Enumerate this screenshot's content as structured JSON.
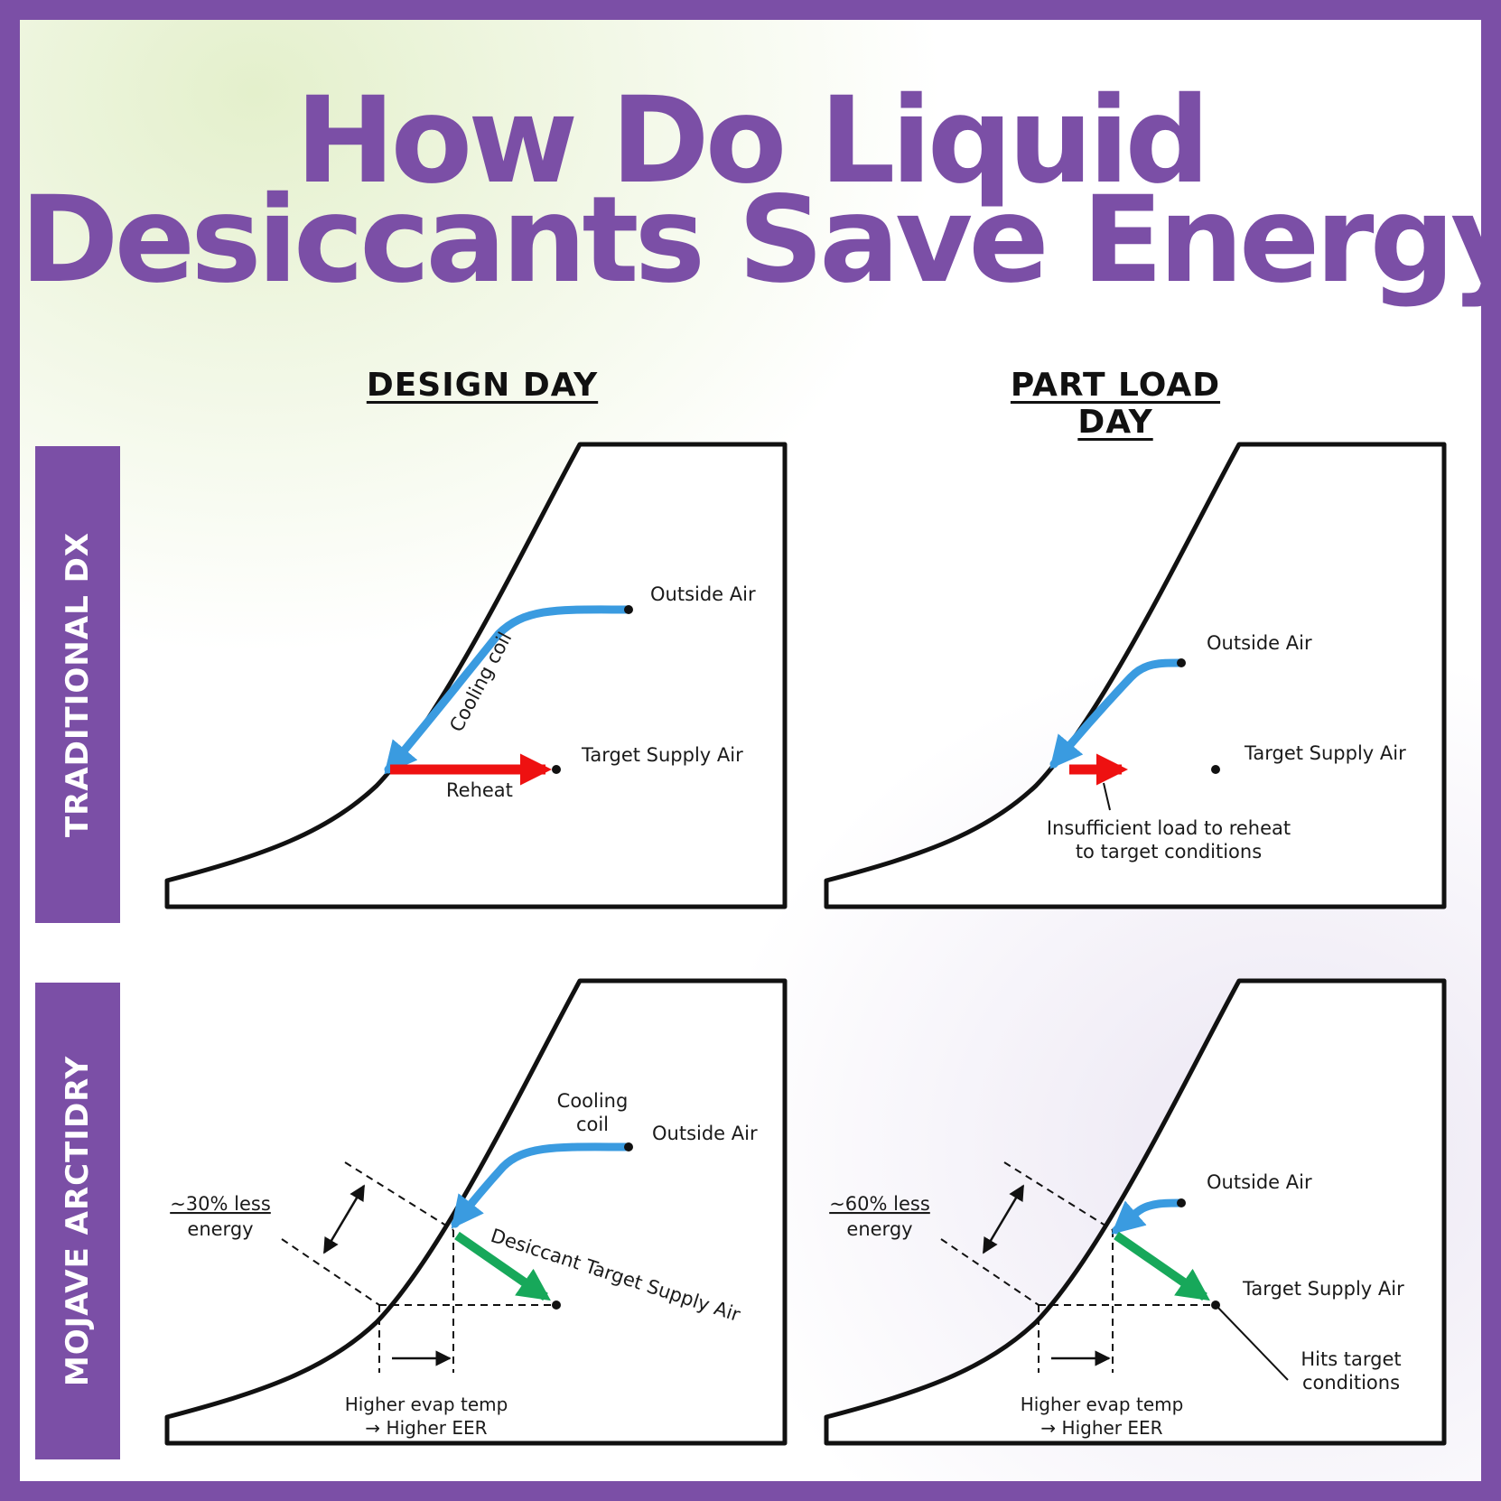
{
  "title": {
    "line1": "How Do Liquid",
    "line2": "Desiccants Save Energy?"
  },
  "columns": {
    "design": "DESIGN DAY",
    "part_load": "PART LOAD DAY"
  },
  "rows": {
    "traditional": "TRADITIONAL DX",
    "mojave": "MOJAVE ARCTIDRY"
  },
  "panels": {
    "trad_design": {
      "outside_air": "Outside Air",
      "cooling_coil": "Cooling coil",
      "target_supply_air": "Target Supply Air",
      "reheat": "Reheat"
    },
    "trad_part": {
      "outside_air": "Outside Air",
      "target_supply_air": "Target Supply Air",
      "note_line1": "Insufficient load to reheat",
      "note_line2": "to target conditions"
    },
    "mojave_design": {
      "cooling_coil_line1": "Cooling",
      "cooling_coil_line2": "coil",
      "outside_air": "Outside Air",
      "desiccant_label": "Desiccant Target Supply Air",
      "savings_line1": "~30% less",
      "savings_line2": "energy",
      "evap_line1": "Higher evap temp",
      "evap_line2": "→ Higher EER"
    },
    "mojave_part": {
      "outside_air": "Outside Air",
      "target_supply_air": "Target Supply Air",
      "savings_line1": "~60% less",
      "savings_line2": "energy",
      "hits_line1": "Hits target",
      "hits_line2": "conditions",
      "evap_line1": "Higher evap temp",
      "evap_line2": "→ Higher EER"
    }
  },
  "colors": {
    "brand_purple": "#7b4fa6",
    "cooling_blue": "#3a9be0",
    "reheat_red": "#ee1111",
    "desiccant_green": "#17a85a"
  }
}
